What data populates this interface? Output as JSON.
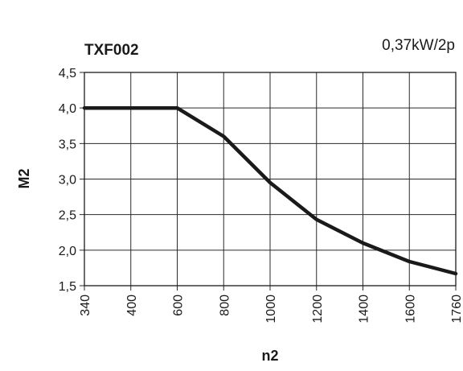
{
  "chart_data": {
    "type": "line",
    "title": "TXF002",
    "power_rating": "0,37kW/2p",
    "xlabel": "n2",
    "ylabel": "M2",
    "categories": [
      "340",
      "400",
      "600",
      "800",
      "1000",
      "1200",
      "1400",
      "1600",
      "1760"
    ],
    "x_tick_labels": [
      "340",
      "400",
      "600",
      "800",
      "1000",
      "1200",
      "1400",
      "1600",
      "1760"
    ],
    "y_tick_labels": [
      "4,5",
      "4,0",
      "3,5",
      "3,0",
      "2,5",
      "2,0",
      "1,5"
    ],
    "ylim": [
      1.5,
      4.5
    ],
    "grid": true,
    "series": [
      {
        "values": [
          4.0,
          4.0,
          4.0,
          3.6,
          2.95,
          2.43,
          2.1,
          1.84,
          1.67
        ]
      }
    ]
  }
}
